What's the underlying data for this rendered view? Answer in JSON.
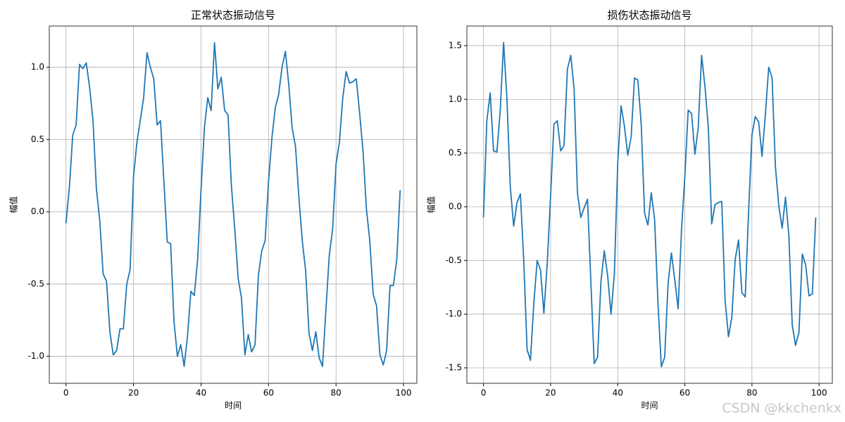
{
  "chart_data": [
    {
      "type": "line",
      "title": "正常状态振动信号",
      "xlabel": "时间",
      "ylabel": "幅值",
      "color": "#1f77b4",
      "grid": true,
      "xlim": [
        -4.95,
        103.95
      ],
      "ylim": [
        -1.187,
        1.285
      ],
      "xticks": [
        0,
        20,
        40,
        60,
        80,
        100
      ],
      "yticks": [
        {
          "value": -1,
          "label": "-1.0"
        },
        -0.5,
        {
          "value": 0,
          "label": "0.0"
        },
        0.5,
        {
          "value": 1,
          "label": "1.0"
        }
      ],
      "x": [
        0,
        1,
        2,
        3,
        4,
        5,
        6,
        7,
        8,
        9,
        10,
        11,
        12,
        13,
        14,
        15,
        16,
        17,
        18,
        19,
        20,
        21,
        22,
        23,
        24,
        25,
        26,
        27,
        28,
        29,
        30,
        31,
        32,
        33,
        34,
        35,
        36,
        37,
        38,
        39,
        40,
        41,
        42,
        43,
        44,
        45,
        46,
        47,
        48,
        49,
        50,
        51,
        52,
        53,
        54,
        55,
        56,
        57,
        58,
        59,
        60,
        61,
        62,
        63,
        64,
        65,
        66,
        67,
        68,
        69,
        70,
        71,
        72,
        73,
        74,
        75,
        76,
        77,
        78,
        79,
        80,
        81,
        82,
        83,
        84,
        85,
        86,
        87,
        88,
        89,
        90,
        91,
        92,
        93,
        94,
        95,
        96,
        97,
        98,
        99
      ],
      "values": [
        -0.08,
        0.17,
        0.53,
        0.6,
        1.02,
        0.99,
        1.03,
        0.86,
        0.63,
        0.16,
        -0.06,
        -0.43,
        -0.48,
        -0.83,
        -0.99,
        -0.96,
        -0.81,
        -0.81,
        -0.5,
        -0.4,
        0.24,
        0.48,
        0.63,
        0.79,
        1.1,
        1.0,
        0.92,
        0.6,
        0.63,
        0.21,
        -0.21,
        -0.22,
        -0.76,
        -1.0,
        -0.92,
        -1.07,
        -0.86,
        -0.55,
        -0.58,
        -0.33,
        0.15,
        0.58,
        0.79,
        0.7,
        1.17,
        0.85,
        0.93,
        0.7,
        0.67,
        0.18,
        -0.12,
        -0.46,
        -0.6,
        -0.99,
        -0.85,
        -0.97,
        -0.92,
        -0.44,
        -0.27,
        -0.2,
        0.21,
        0.51,
        0.72,
        0.81,
        1.0,
        1.11,
        0.88,
        0.58,
        0.45,
        0.1,
        -0.2,
        -0.41,
        -0.84,
        -0.96,
        -0.83,
        -1.01,
        -1.07,
        -0.68,
        -0.3,
        -0.12,
        0.33,
        0.48,
        0.79,
        0.97,
        0.89,
        0.9,
        0.92,
        0.68,
        0.42,
        0.02,
        -0.2,
        -0.57,
        -0.65,
        -0.99,
        -1.06,
        -0.96,
        -0.51,
        -0.51,
        -0.33,
        0.15
      ]
    },
    {
      "type": "line",
      "title": "损伤状态振动信号",
      "xlabel": "时间",
      "ylabel": "幅值",
      "color": "#1f77b4",
      "grid": true,
      "xlim": [
        -4.95,
        103.95
      ],
      "ylim": [
        -1.644,
        1.683
      ],
      "xticks": [
        0,
        20,
        40,
        60,
        80,
        100
      ],
      "yticks": [
        -1.5,
        {
          "value": -1,
          "label": "-1.0"
        },
        -0.5,
        {
          "value": 0,
          "label": "0.0"
        },
        0.5,
        {
          "value": 1,
          "label": "1.0"
        },
        1.5
      ],
      "x": [
        0,
        1,
        2,
        3,
        4,
        5,
        6,
        7,
        8,
        9,
        10,
        11,
        12,
        13,
        14,
        15,
        16,
        17,
        18,
        19,
        20,
        21,
        22,
        23,
        24,
        25,
        26,
        27,
        28,
        29,
        30,
        31,
        32,
        33,
        34,
        35,
        36,
        37,
        38,
        39,
        40,
        41,
        42,
        43,
        44,
        45,
        46,
        47,
        48,
        49,
        50,
        51,
        52,
        53,
        54,
        55,
        56,
        57,
        58,
        59,
        60,
        61,
        62,
        63,
        64,
        65,
        66,
        67,
        68,
        69,
        70,
        71,
        72,
        73,
        74,
        75,
        76,
        77,
        78,
        79,
        80,
        81,
        82,
        83,
        84,
        85,
        86,
        87,
        88,
        89,
        90,
        91,
        92,
        93,
        94,
        95,
        96,
        97,
        98,
        99
      ],
      "values": [
        -0.1,
        0.8,
        1.06,
        0.52,
        0.51,
        0.9,
        1.53,
        1.0,
        0.18,
        -0.18,
        0.04,
        0.12,
        -0.5,
        -1.33,
        -1.43,
        -0.9,
        -0.5,
        -0.59,
        -0.99,
        -0.53,
        0.1,
        0.77,
        0.8,
        0.52,
        0.57,
        1.28,
        1.41,
        1.1,
        0.13,
        -0.1,
        -0.01,
        0.07,
        -0.7,
        -1.46,
        -1.4,
        -0.7,
        -0.41,
        -0.64,
        -1.0,
        -0.63,
        0.4,
        0.94,
        0.75,
        0.48,
        0.65,
        1.2,
        1.18,
        0.77,
        -0.06,
        -0.17,
        0.13,
        -0.12,
        -0.9,
        -1.49,
        -1.4,
        -0.72,
        -0.43,
        -0.68,
        -0.95,
        -0.22,
        0.28,
        0.9,
        0.87,
        0.49,
        0.74,
        1.41,
        1.12,
        0.74,
        -0.16,
        0.02,
        0.04,
        0.05,
        -0.87,
        -1.21,
        -1.03,
        -0.49,
        -0.31,
        -0.8,
        -0.84,
        -0.05,
        0.67,
        0.84,
        0.79,
        0.47,
        0.86,
        1.3,
        1.2,
        0.37,
        0.01,
        -0.2,
        0.09,
        -0.27,
        -1.1,
        -1.29,
        -1.17,
        -0.44,
        -0.54,
        -0.83,
        -0.81,
        -0.1
      ]
    }
  ],
  "watermark": "CSDN @kkchenkx"
}
